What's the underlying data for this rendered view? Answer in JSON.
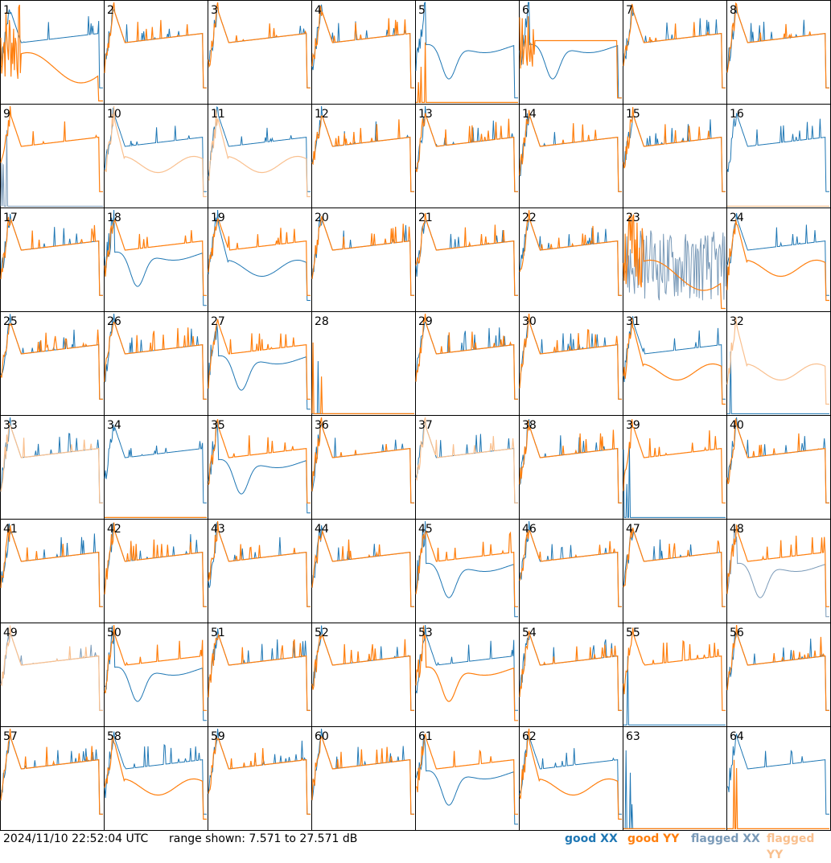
{
  "footer": {
    "timestamp": "2024/11/10 22:52:04 UTC",
    "range_text": "range shown: 7.571 to 27.571 dB"
  },
  "legend": {
    "good_xx": "good XX",
    "good_yy": "good YY",
    "flagged_xx": "flagged XX",
    "flagged_yy": "flagged YY"
  },
  "colors": {
    "good_xx": "#1f77b4",
    "good_yy": "#ff7f0e",
    "flagged_xx": "#7a9ab8",
    "flagged_yy": "#f9c08f"
  },
  "chart_data": {
    "type": "line",
    "title": "",
    "xlabel": "",
    "ylabel": "",
    "ylim": [
      7.571,
      27.571
    ],
    "grid": "8x8 panels",
    "panels": [
      {
        "label": "1",
        "xx": "good",
        "yy": "good",
        "xx_shape": "normal",
        "yy_shape": "spiky_low"
      },
      {
        "label": "2",
        "xx": "good",
        "yy": "good",
        "xx_shape": "normal",
        "yy_shape": "normal"
      },
      {
        "label": "3",
        "xx": "good",
        "yy": "good",
        "xx_shape": "normal",
        "yy_shape": "normal"
      },
      {
        "label": "4",
        "xx": "good",
        "yy": "good",
        "xx_shape": "normal",
        "yy_shape": "normal"
      },
      {
        "label": "5",
        "xx": "good",
        "yy": "good",
        "xx_shape": "dip",
        "yy_shape": "dead"
      },
      {
        "label": "6",
        "xx": "good",
        "yy": "good",
        "xx_shape": "dip",
        "yy_shape": "high_flat"
      },
      {
        "label": "7",
        "xx": "good",
        "yy": "good",
        "xx_shape": "normal",
        "yy_shape": "normal"
      },
      {
        "label": "8",
        "xx": "good",
        "yy": "good",
        "xx_shape": "normal",
        "yy_shape": "normal"
      },
      {
        "label": "9",
        "xx": "flagged",
        "yy": "good",
        "xx_shape": "dead",
        "yy_shape": "normal"
      },
      {
        "label": "10",
        "xx": "good",
        "yy": "flagged",
        "xx_shape": "normal",
        "yy_shape": "low"
      },
      {
        "label": "11",
        "xx": "good",
        "yy": "flagged",
        "xx_shape": "normal",
        "yy_shape": "low"
      },
      {
        "label": "12",
        "xx": "good",
        "yy": "good",
        "xx_shape": "normal",
        "yy_shape": "normal"
      },
      {
        "label": "13",
        "xx": "good",
        "yy": "good",
        "xx_shape": "normal",
        "yy_shape": "normal"
      },
      {
        "label": "14",
        "xx": "good",
        "yy": "good",
        "xx_shape": "normal",
        "yy_shape": "normal"
      },
      {
        "label": "15",
        "xx": "good",
        "yy": "good",
        "xx_shape": "normal",
        "yy_shape": "normal"
      },
      {
        "label": "16",
        "xx": "good",
        "yy": "flagged",
        "xx_shape": "normal",
        "yy_shape": "dead"
      },
      {
        "label": "17",
        "xx": "good",
        "yy": "good",
        "xx_shape": "normal",
        "yy_shape": "normal"
      },
      {
        "label": "18",
        "xx": "good",
        "yy": "good",
        "xx_shape": "dip",
        "yy_shape": "normal"
      },
      {
        "label": "19",
        "xx": "good",
        "yy": "good",
        "xx_shape": "low",
        "yy_shape": "normal"
      },
      {
        "label": "20",
        "xx": "good",
        "yy": "good",
        "xx_shape": "normal",
        "yy_shape": "normal"
      },
      {
        "label": "21",
        "xx": "good",
        "yy": "good",
        "xx_shape": "normal",
        "yy_shape": "normal"
      },
      {
        "label": "22",
        "xx": "good",
        "yy": "good",
        "xx_shape": "normal",
        "yy_shape": "normal"
      },
      {
        "label": "23",
        "xx": "flagged",
        "yy": "good",
        "xx_shape": "noise",
        "yy_shape": "spiky_low"
      },
      {
        "label": "24",
        "xx": "good",
        "yy": "good",
        "xx_shape": "normal",
        "yy_shape": "low"
      },
      {
        "label": "25",
        "xx": "good",
        "yy": "good",
        "xx_shape": "normal",
        "yy_shape": "normal"
      },
      {
        "label": "26",
        "xx": "good",
        "yy": "good",
        "xx_shape": "normal",
        "yy_shape": "normal"
      },
      {
        "label": "27",
        "xx": "good",
        "yy": "good",
        "xx_shape": "dip",
        "yy_shape": "normal"
      },
      {
        "label": "28",
        "xx": "good",
        "yy": "good",
        "xx_shape": "dead",
        "yy_shape": "dead"
      },
      {
        "label": "29",
        "xx": "good",
        "yy": "good",
        "xx_shape": "normal",
        "yy_shape": "normal"
      },
      {
        "label": "30",
        "xx": "good",
        "yy": "good",
        "xx_shape": "normal",
        "yy_shape": "normal"
      },
      {
        "label": "31",
        "xx": "good",
        "yy": "good",
        "xx_shape": "normal",
        "yy_shape": "low"
      },
      {
        "label": "32",
        "xx": "good",
        "yy": "flagged",
        "xx_shape": "dead",
        "yy_shape": "low"
      },
      {
        "label": "33",
        "xx": "good",
        "yy": "flagged",
        "xx_shape": "normal",
        "yy_shape": "normal"
      },
      {
        "label": "34",
        "xx": "good",
        "yy": "good",
        "xx_shape": "normal",
        "yy_shape": "dead"
      },
      {
        "label": "35",
        "xx": "good",
        "yy": "good",
        "xx_shape": "dip",
        "yy_shape": "normal"
      },
      {
        "label": "36",
        "xx": "good",
        "yy": "good",
        "xx_shape": "normal",
        "yy_shape": "normal"
      },
      {
        "label": "37",
        "xx": "good",
        "yy": "flagged",
        "xx_shape": "normal",
        "yy_shape": "normal"
      },
      {
        "label": "38",
        "xx": "good",
        "yy": "good",
        "xx_shape": "normal",
        "yy_shape": "normal"
      },
      {
        "label": "39",
        "xx": "good",
        "yy": "good",
        "xx_shape": "dead",
        "yy_shape": "normal"
      },
      {
        "label": "40",
        "xx": "good",
        "yy": "good",
        "xx_shape": "normal",
        "yy_shape": "normal"
      },
      {
        "label": "41",
        "xx": "good",
        "yy": "good",
        "xx_shape": "normal",
        "yy_shape": "normal"
      },
      {
        "label": "42",
        "xx": "good",
        "yy": "good",
        "xx_shape": "normal",
        "yy_shape": "normal"
      },
      {
        "label": "43",
        "xx": "good",
        "yy": "good",
        "xx_shape": "normal",
        "yy_shape": "normal"
      },
      {
        "label": "44",
        "xx": "good",
        "yy": "good",
        "xx_shape": "normal",
        "yy_shape": "normal"
      },
      {
        "label": "45",
        "xx": "good",
        "yy": "good",
        "xx_shape": "dip",
        "yy_shape": "normal"
      },
      {
        "label": "46",
        "xx": "good",
        "yy": "good",
        "xx_shape": "normal",
        "yy_shape": "normal"
      },
      {
        "label": "47",
        "xx": "good",
        "yy": "good",
        "xx_shape": "normal",
        "yy_shape": "normal"
      },
      {
        "label": "48",
        "xx": "flagged",
        "yy": "good",
        "xx_shape": "dip",
        "yy_shape": "normal"
      },
      {
        "label": "49",
        "xx": "flagged",
        "yy": "flagged",
        "xx_shape": "normal",
        "yy_shape": "normal"
      },
      {
        "label": "50",
        "xx": "good",
        "yy": "good",
        "xx_shape": "dip",
        "yy_shape": "normal"
      },
      {
        "label": "51",
        "xx": "good",
        "yy": "good",
        "xx_shape": "normal",
        "yy_shape": "normal"
      },
      {
        "label": "52",
        "xx": "good",
        "yy": "good",
        "xx_shape": "normal",
        "yy_shape": "normal"
      },
      {
        "label": "53",
        "xx": "good",
        "yy": "good",
        "xx_shape": "normal",
        "yy_shape": "dip"
      },
      {
        "label": "54",
        "xx": "good",
        "yy": "good",
        "xx_shape": "normal",
        "yy_shape": "normal"
      },
      {
        "label": "55",
        "xx": "good",
        "yy": "good",
        "xx_shape": "dead",
        "yy_shape": "normal"
      },
      {
        "label": "56",
        "xx": "good",
        "yy": "good",
        "xx_shape": "normal",
        "yy_shape": "normal"
      },
      {
        "label": "57",
        "xx": "good",
        "yy": "good",
        "xx_shape": "normal",
        "yy_shape": "normal"
      },
      {
        "label": "58",
        "xx": "good",
        "yy": "good",
        "xx_shape": "normal",
        "yy_shape": "low"
      },
      {
        "label": "59",
        "xx": "good",
        "yy": "good",
        "xx_shape": "normal",
        "yy_shape": "normal"
      },
      {
        "label": "60",
        "xx": "good",
        "yy": "good",
        "xx_shape": "normal",
        "yy_shape": "normal"
      },
      {
        "label": "61",
        "xx": "good",
        "yy": "good",
        "xx_shape": "dip",
        "yy_shape": "normal"
      },
      {
        "label": "62",
        "xx": "good",
        "yy": "good",
        "xx_shape": "normal",
        "yy_shape": "low"
      },
      {
        "label": "63",
        "xx": "good",
        "yy": "good",
        "xx_shape": "dead",
        "yy_shape": "dead"
      },
      {
        "label": "64",
        "xx": "good",
        "yy": "good",
        "xx_shape": "normal",
        "yy_shape": "dead"
      }
    ]
  }
}
